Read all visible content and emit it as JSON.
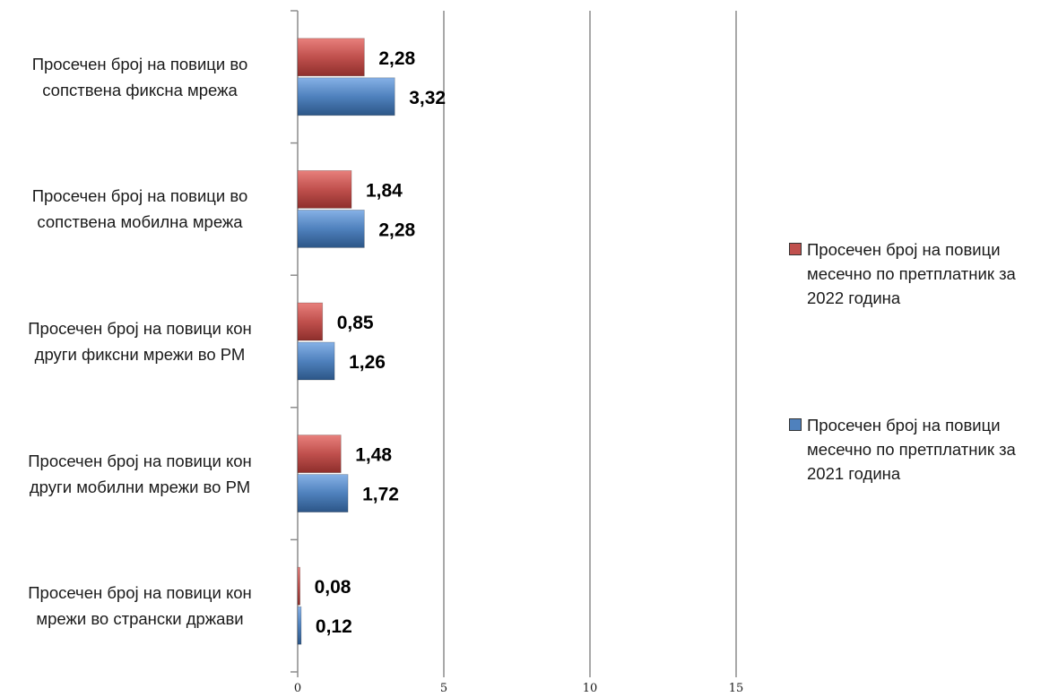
{
  "chart_data": {
    "type": "bar",
    "orientation": "horizontal",
    "categories": [
      "Просечен број на повици во сопствена фиксна мрежа",
      "Просечен број на повици во сопствена мобилна мрежа",
      "Просечен број на повици кон други фиксни мрежи во РМ",
      "Просечен број на повици кон други мобилни мрежи во РМ",
      "Просечен број на повици кон мрежи во странски држави"
    ],
    "category_lines": [
      [
        "Просечен број на повици во",
        "сопствена фиксна мрежа"
      ],
      [
        "Просечен број на повици во",
        "сопствена мобилна мрежа"
      ],
      [
        "Просечен број на повици кон",
        "други фиксни мрежи во РМ"
      ],
      [
        "Просечен број на повици кон",
        "други мобилни мрежи во РМ"
      ],
      [
        "Просечен број на повици кон",
        "мрежи во странски држави"
      ]
    ],
    "series": [
      {
        "name": "Просечен број на повици месечно по претплатник за 2022 година",
        "name_lines": [
          "Просечен број на повици",
          "месечно по претплатник за",
          "2022 година"
        ],
        "color": "#c0504d",
        "values": [
          2.28,
          1.84,
          0.85,
          1.48,
          0.08
        ],
        "labels": [
          "2,28",
          "1,84",
          "0,85",
          "1,48",
          "0,08"
        ]
      },
      {
        "name": "Просечен број на повици месечно по претплатник за 2021 година",
        "name_lines": [
          "Просечен број на повици",
          "месечно по претплатник за",
          "2021 година"
        ],
        "color": "#4f81bd",
        "values": [
          3.32,
          2.28,
          1.26,
          1.72,
          0.12
        ],
        "labels": [
          "3,32",
          "2,28",
          "1,26",
          "1,72",
          "0,12"
        ]
      }
    ],
    "xlim": [
      0,
      15
    ],
    "x_ticks": [
      "0",
      "5",
      "10",
      "15"
    ],
    "grid": true,
    "legend": "right"
  }
}
